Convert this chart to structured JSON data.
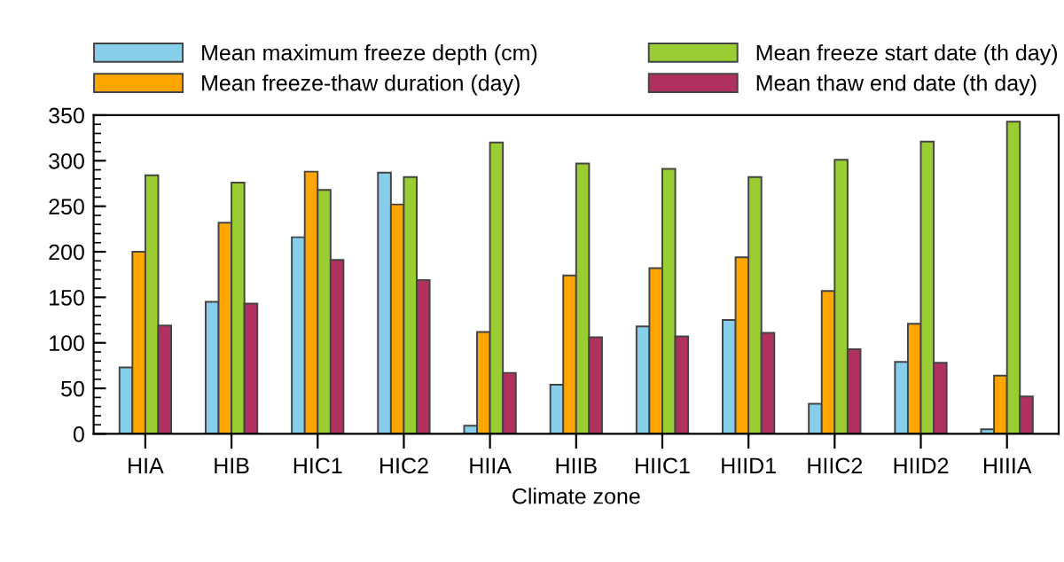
{
  "chart_data": {
    "type": "bar",
    "xlabel": "Climate zone",
    "categories": [
      "HIA",
      "HIB",
      "HIC1",
      "HIC2",
      "HIIA",
      "HIIB",
      "HIIC1",
      "HIID1",
      "HIIC2",
      "HIID2",
      "HIIIA"
    ],
    "series": [
      {
        "name": "Mean maximum freeze depth (cm)",
        "color": "#87ceeb",
        "values": [
          73,
          145,
          216,
          287,
          9,
          54,
          118,
          125,
          33,
          79,
          5
        ]
      },
      {
        "name": "Mean freeze-thaw duration (day)",
        "color": "#ffa500",
        "values": [
          200,
          232,
          288,
          252,
          112,
          174,
          182,
          194,
          157,
          121,
          64
        ]
      },
      {
        "name": "Mean freeze start date (th day)",
        "color": "#9acd32",
        "values": [
          284,
          276,
          268,
          282,
          320,
          297,
          291,
          282,
          301,
          321,
          343
        ]
      },
      {
        "name": "Mean thaw end date (th day)",
        "color": "#b03060",
        "values": [
          119,
          143,
          191,
          169,
          67,
          106,
          107,
          111,
          93,
          78,
          41
        ]
      }
    ],
    "ylim": [
      0,
      350
    ],
    "yticks": [
      0,
      50,
      100,
      150,
      200,
      250,
      300,
      350
    ],
    "legend": "top",
    "grid": false
  }
}
